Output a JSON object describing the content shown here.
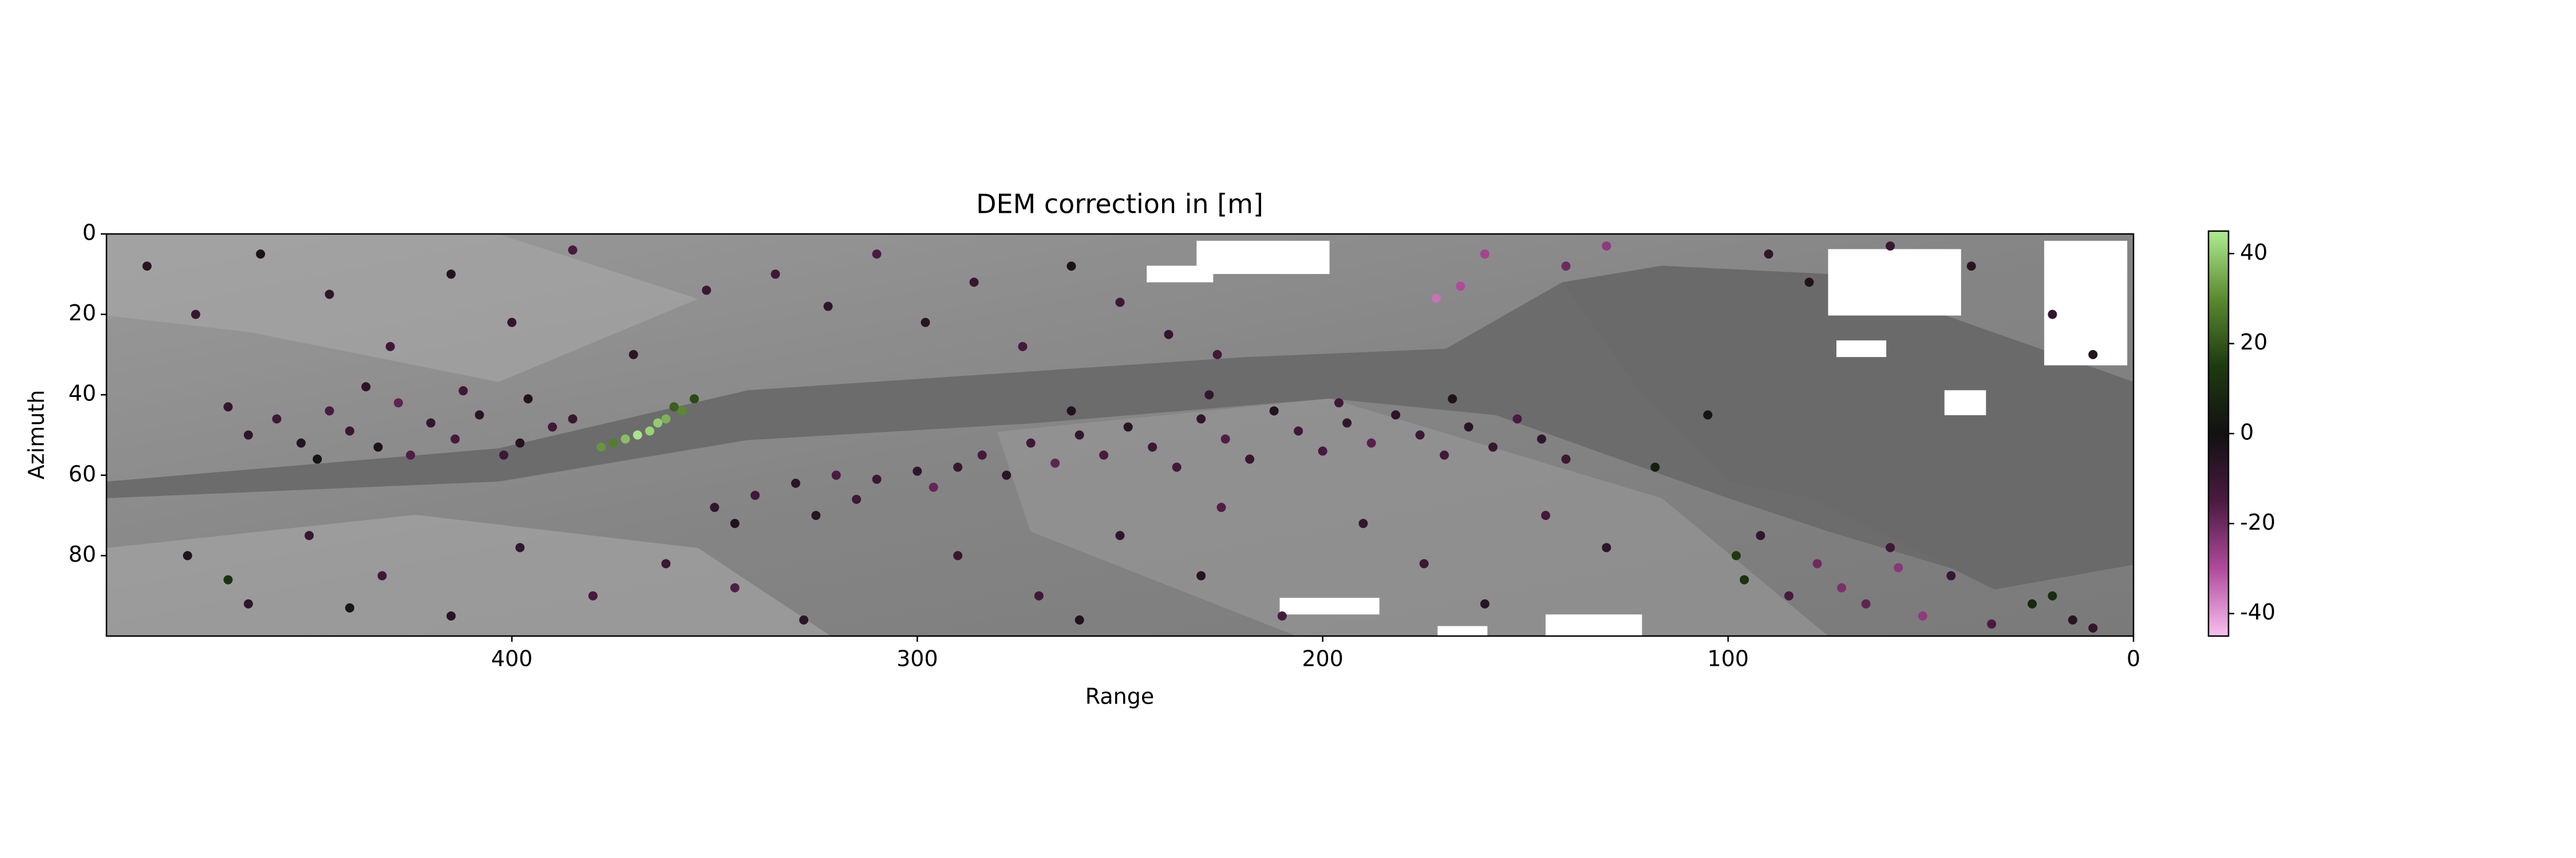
{
  "chart_data": {
    "type": "scatter",
    "title": "DEM correction in [m]",
    "x_label": "Range",
    "y_label": "Azimuth",
    "xlim": [
      500,
      0
    ],
    "ylim": [
      100,
      0
    ],
    "xticks": [
      400,
      300,
      200,
      100,
      0
    ],
    "yticks": [
      0,
      20,
      40,
      60,
      80
    ],
    "clim": [
      -45,
      45
    ],
    "cticks": [
      -40,
      -20,
      0,
      20,
      40
    ],
    "colormap": [
      "#f7c0ee",
      "#b04a9c",
      "#4a1a40",
      "#111111",
      "#1e3a10",
      "#5a8a30",
      "#b0ec90"
    ],
    "x": [
      465,
      458,
      452,
      445,
      440,
      433,
      428,
      420,
      414,
      408,
      402,
      396,
      390,
      436,
      448,
      425,
      470,
      412,
      398,
      385,
      378,
      372,
      366,
      362,
      358,
      369,
      375,
      360,
      355,
      364,
      290,
      284,
      278,
      272,
      266,
      260,
      254,
      248,
      242,
      236,
      230,
      224,
      218,
      212,
      206,
      200,
      194,
      188,
      182,
      176,
      170,
      164,
      158,
      152,
      146,
      262,
      228,
      196,
      168,
      140,
      350,
      340,
      330,
      320,
      310,
      300,
      345,
      315,
      296,
      325,
      335,
      322,
      310,
      298,
      286,
      274,
      262,
      250,
      238,
      226,
      172,
      166,
      160,
      130,
      140,
      490,
      478,
      462,
      445,
      430,
      415,
      400,
      385,
      370,
      352,
      480,
      465,
      450,
      432,
      415,
      398,
      380,
      362,
      345,
      328,
      470,
      440,
      290,
      270,
      250,
      230,
      210,
      190,
      175,
      160,
      145,
      130,
      225,
      260,
      98,
      96,
      92,
      85,
      78,
      72,
      66,
      60,
      52,
      45,
      35,
      25,
      20,
      15,
      10,
      58,
      90,
      80,
      60,
      40,
      20,
      10,
      118,
      105
    ],
    "y": [
      50,
      46,
      52,
      44,
      49,
      53,
      42,
      47,
      51,
      45,
      55,
      41,
      48,
      38,
      56,
      55,
      43,
      39,
      52,
      46,
      53,
      51,
      49,
      46,
      44,
      50,
      52,
      43,
      41,
      47,
      58,
      55,
      60,
      52,
      57,
      50,
      55,
      48,
      53,
      58,
      46,
      51,
      56,
      44,
      49,
      54,
      47,
      52,
      45,
      50,
      55,
      48,
      53,
      46,
      51,
      44,
      40,
      42,
      41,
      56,
      68,
      65,
      62,
      60,
      61,
      59,
      72,
      66,
      63,
      70,
      10,
      18,
      5,
      22,
      12,
      28,
      8,
      17,
      25,
      30,
      16,
      13,
      5,
      3,
      8,
      8,
      20,
      5,
      15,
      28,
      10,
      22,
      4,
      30,
      14,
      80,
      92,
      75,
      85,
      95,
      78,
      90,
      82,
      88,
      96,
      86,
      93,
      80,
      90,
      75,
      85,
      95,
      72,
      82,
      92,
      70,
      78,
      68,
      96,
      80,
      86,
      75,
      90,
      82,
      88,
      92,
      78,
      95,
      85,
      97,
      92,
      90,
      96,
      98,
      83,
      5,
      12,
      3,
      8,
      20,
      30,
      58,
      45
    ],
    "c": [
      -8,
      -12,
      -5,
      -15,
      -10,
      -3,
      -18,
      -9,
      -14,
      -6,
      -11,
      -4,
      -13,
      -7,
      -2,
      -16,
      -9,
      -12,
      -5,
      -10,
      32,
      38,
      41,
      36,
      30,
      44,
      28,
      22,
      18,
      40,
      -10,
      -14,
      -7,
      -12,
      -18,
      -9,
      -15,
      -6,
      -11,
      -13,
      -8,
      -16,
      -10,
      -5,
      -12,
      -14,
      -9,
      -17,
      -7,
      -11,
      -13,
      -6,
      -10,
      -15,
      -8,
      -4,
      -9,
      -12,
      -3,
      -11,
      -9,
      -13,
      -7,
      -15,
      -11,
      -8,
      -4,
      -12,
      -19,
      -6,
      -12,
      -8,
      -15,
      -6,
      -10,
      -14,
      -3,
      -11,
      -9,
      -13,
      -35,
      -30,
      -28,
      -25,
      -20,
      -6,
      -10,
      -3,
      -8,
      -12,
      -5,
      -9,
      -14,
      -7,
      -11,
      -4,
      -8,
      -10,
      -12,
      -6,
      -9,
      -14,
      -11,
      -16,
      -7,
      12,
      3,
      -10,
      -12,
      -8,
      -5,
      -14,
      -9,
      -11,
      -6,
      -13,
      -7,
      -16,
      -4,
      15,
      12,
      -8,
      -14,
      -20,
      -22,
      -18,
      -12,
      -25,
      -10,
      -15,
      8,
      10,
      -6,
      -9,
      -24,
      -8,
      -4,
      -10,
      -6,
      -9,
      -5,
      5,
      2
    ]
  }
}
